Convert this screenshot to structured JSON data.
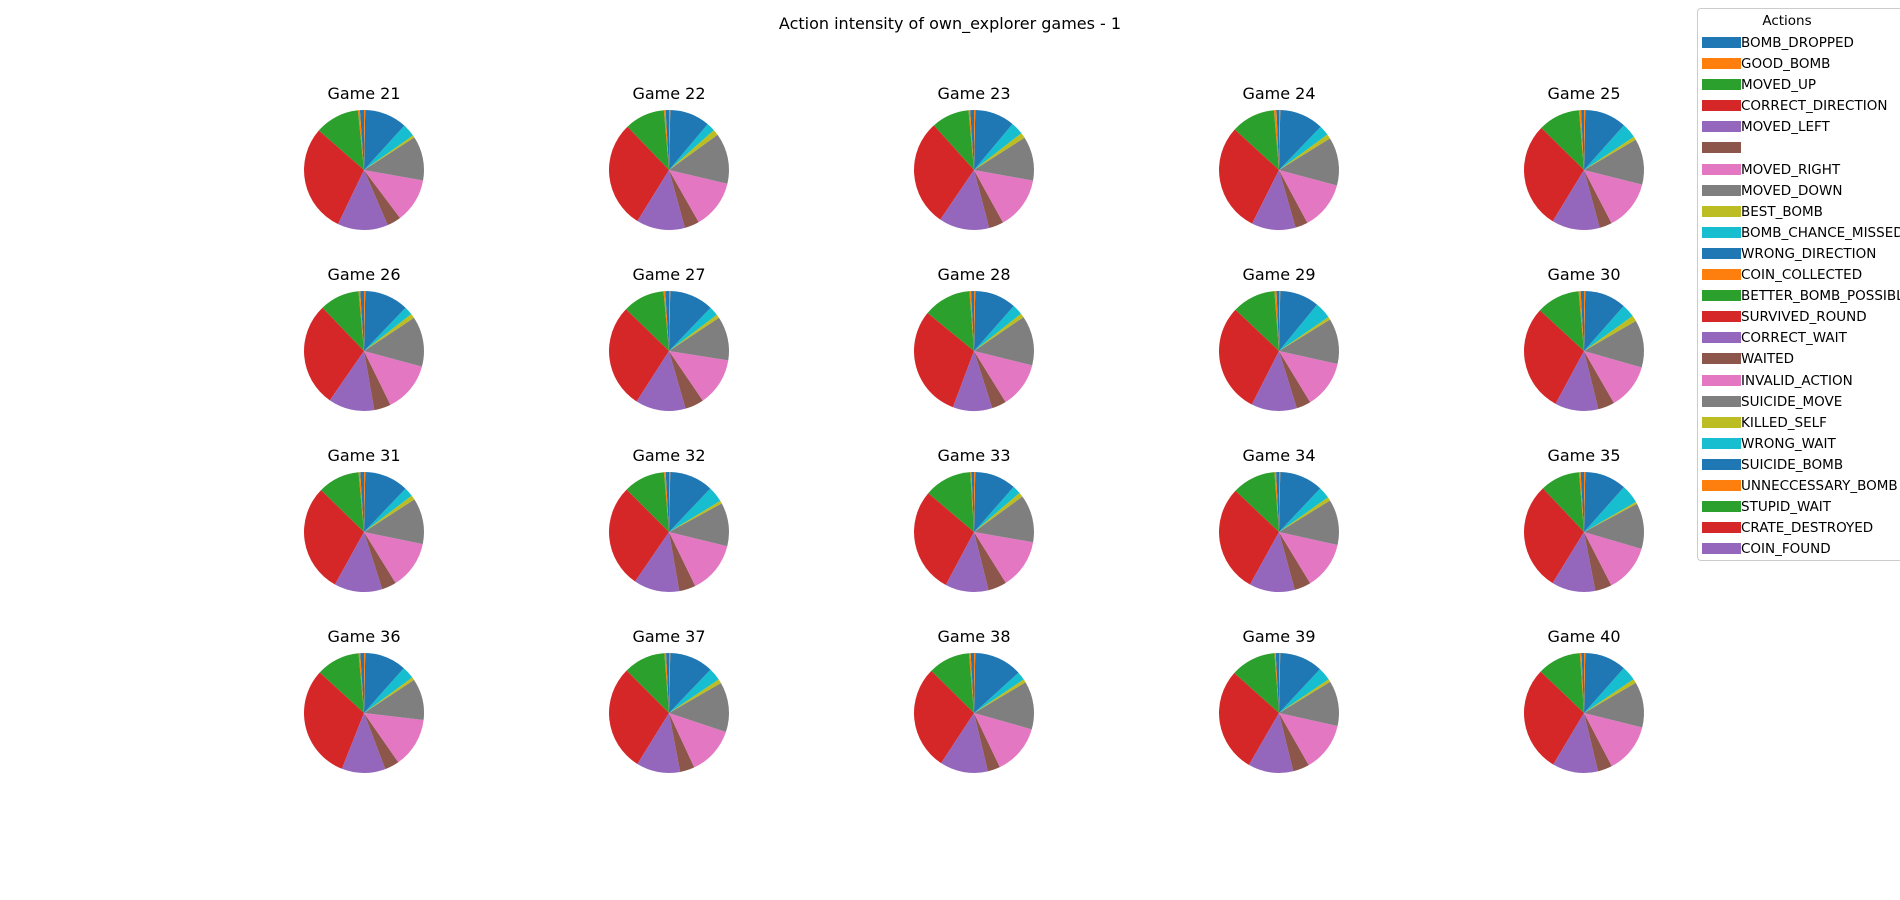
{
  "figure": {
    "title": "Action intensity of own_explorer games - 1"
  },
  "legend": {
    "title": "Actions"
  },
  "chart_data": {
    "type": "pie",
    "title": "Action intensity of own_explorer games - 1",
    "legend_placement": "right",
    "start_angle_deg": 90,
    "direction": "counterclockwise",
    "labels": [
      "BOMB_DROPPED",
      "GOOD_BOMB",
      "MOVED_UP",
      "CORRECT_DIRECTION",
      "MOVED_LEFT",
      "",
      "MOVED_RIGHT",
      "MOVED_DOWN",
      "BEST_BOMB",
      "BOMB_CHANCE_MISSED",
      "WRONG_DIRECTION",
      "COIN_COLLECTED",
      "BETTER_BOMB_POSSIBLE",
      "SURVIVED_ROUND",
      "CORRECT_WAIT",
      "WAITED",
      "INVALID_ACTION",
      "SUICIDE_MOVE",
      "KILLED_SELF",
      "WRONG_WAIT",
      "SUICIDE_BOMB",
      "UNNECCESSARY_BOMB",
      "STUPID_WAIT",
      "CRATE_DESTROYED",
      "COIN_FOUND"
    ],
    "colors": [
      "#1f77b4",
      "#ff7f0e",
      "#2ca02c",
      "#d62728",
      "#9467bd",
      "#8c564b",
      "#e377c2",
      "#7f7f7f",
      "#bcbd22",
      "#17becf",
      "#1f77b4",
      "#ff7f0e",
      "#2ca02c",
      "#d62728",
      "#9467bd",
      "#8c564b",
      "#e377c2",
      "#7f7f7f",
      "#bcbd22",
      "#17becf",
      "#1f77b4",
      "#ff7f0e",
      "#2ca02c",
      "#d62728",
      "#9467bd"
    ],
    "pies": [
      {
        "title": "Game 21",
        "values": [
          1.0,
          0.5,
          11.0,
          27.0,
          12.5,
          3.5,
          11.0,
          11.0,
          0.6,
          3.2,
          10.5,
          0.3,
          0,
          0,
          0,
          0,
          0,
          0,
          0,
          0,
          0,
          0,
          0,
          0,
          0
        ]
      },
      {
        "title": "Game 22",
        "values": [
          0.8,
          0.4,
          9.5,
          25.5,
          11.5,
          3.5,
          11.5,
          12.0,
          1.4,
          2.0,
          9.5,
          0.3,
          0,
          0,
          0,
          0,
          0,
          0,
          0,
          0,
          0,
          0,
          0,
          0,
          0
        ]
      },
      {
        "title": "Game 23",
        "values": [
          0.9,
          0.4,
          9.0,
          25.5,
          12.0,
          3.5,
          12.5,
          10.5,
          1.3,
          3.0,
          9.5,
          0.3,
          0,
          0,
          0,
          0,
          0,
          0,
          0,
          0,
          0,
          0,
          0,
          0,
          0
        ]
      },
      {
        "title": "Game 24",
        "values": [
          0.6,
          0.6,
          10.5,
          26.0,
          10.5,
          3.0,
          11.5,
          11.5,
          1.1,
          2.4,
          10.5,
          0.3,
          0,
          0,
          0,
          0,
          0,
          0,
          0,
          0,
          0,
          0,
          0,
          0,
          0
        ]
      },
      {
        "title": "Game 25",
        "values": [
          0.7,
          0.5,
          10.0,
          25.5,
          11.5,
          3.0,
          12.0,
          11.0,
          0.8,
          3.6,
          10.0,
          0.3,
          0,
          0,
          0,
          0,
          0,
          0,
          0,
          0,
          0,
          0,
          0,
          0,
          0
        ]
      },
      {
        "title": "Game 26",
        "values": [
          0.9,
          0.4,
          9.5,
          25.0,
          11.0,
          4.0,
          12.0,
          12.0,
          1.1,
          2.0,
          10.5,
          0.3,
          0,
          0,
          0,
          0,
          0,
          0,
          0,
          0,
          0,
          0,
          0,
          0,
          0
        ]
      },
      {
        "title": "Game 27",
        "values": [
          0.9,
          0.4,
          10.0,
          25.0,
          12.0,
          4.5,
          11.5,
          10.5,
          0.9,
          2.2,
          10.5,
          0.3,
          0,
          0,
          0,
          0,
          0,
          0,
          0,
          0,
          0,
          0,
          0,
          0,
          0
        ]
      },
      {
        "title": "Game 28",
        "values": [
          0.7,
          0.4,
          11.5,
          27.0,
          9.5,
          3.5,
          11.0,
          12.0,
          1.0,
          2.5,
          10.0,
          0.3,
          0,
          0,
          0,
          0,
          0,
          0,
          0,
          0,
          0,
          0,
          0,
          0,
          0
        ]
      },
      {
        "title": "Game 29",
        "values": [
          0.6,
          0.5,
          10.5,
          26.5,
          11.0,
          3.5,
          11.5,
          11.0,
          0.7,
          4.0,
          9.5,
          0.3,
          0,
          0,
          0,
          0,
          0,
          0,
          0,
          0,
          0,
          0,
          0,
          0,
          0
        ]
      },
      {
        "title": "Game 30",
        "values": [
          0.8,
          0.5,
          10.5,
          26.0,
          10.5,
          4.0,
          11.0,
          11.5,
          1.4,
          3.2,
          10.0,
          0.3,
          0,
          0,
          0,
          0,
          0,
          0,
          0,
          0,
          0,
          0,
          0,
          0,
          0
        ]
      },
      {
        "title": "Game 31",
        "values": [
          0.9,
          0.4,
          10.0,
          26.0,
          11.5,
          3.5,
          11.5,
          11.0,
          1.1,
          2.2,
          10.5,
          0.3,
          0,
          0,
          0,
          0,
          0,
          0,
          0,
          0,
          0,
          0,
          0,
          0,
          0
        ]
      },
      {
        "title": "Game 32",
        "values": [
          0.8,
          0.4,
          10.0,
          25.0,
          11.0,
          4.0,
          12.5,
          10.5,
          0.7,
          3.8,
          10.5,
          0.3,
          0,
          0,
          0,
          0,
          0,
          0,
          0,
          0,
          0,
          0,
          0,
          0,
          0
        ]
      },
      {
        "title": "Game 33",
        "values": [
          0.6,
          0.3,
          11.5,
          25.5,
          10.5,
          4.5,
          12.0,
          11.5,
          1.1,
          2.0,
          10.0,
          0.3,
          0,
          0,
          0,
          0,
          0,
          0,
          0,
          0,
          0,
          0,
          0,
          0,
          0
        ]
      },
      {
        "title": "Game 34",
        "values": [
          0.7,
          0.4,
          10.5,
          26.0,
          11.0,
          4.0,
          11.5,
          11.0,
          0.9,
          2.8,
          10.5,
          0.3,
          0,
          0,
          0,
          0,
          0,
          0,
          0,
          0,
          0,
          0,
          0,
          0,
          0
        ]
      },
      {
        "title": "Game 35",
        "values": [
          0.8,
          0.4,
          9.5,
          26.0,
          10.5,
          4.0,
          11.5,
          11.0,
          0.5,
          4.5,
          10.0,
          0.3,
          0,
          0,
          0,
          0,
          0,
          0,
          0,
          0,
          0,
          0,
          0,
          0,
          0
        ]
      },
      {
        "title": "Game 36",
        "values": [
          0.9,
          0.4,
          10.5,
          27.5,
          10.5,
          3.5,
          12.0,
          10.0,
          0.7,
          3.0,
          10.0,
          0.3,
          0,
          0,
          0,
          0,
          0,
          0,
          0,
          0,
          0,
          0,
          0,
          0,
          0
        ]
      },
      {
        "title": "Game 37",
        "values": [
          0.7,
          0.4,
          10.0,
          25.5,
          10.5,
          3.5,
          11.5,
          12.0,
          1.0,
          3.0,
          10.5,
          0.3,
          0,
          0,
          0,
          0,
          0,
          0,
          0,
          0,
          0,
          0,
          0,
          0,
          0
        ]
      },
      {
        "title": "Game 38",
        "values": [
          0.8,
          0.4,
          10.0,
          25.0,
          11.5,
          3.0,
          12.0,
          11.5,
          0.8,
          2.0,
          11.5,
          0.3,
          0,
          0,
          0,
          0,
          0,
          0,
          0,
          0,
          0,
          0,
          0,
          0,
          0
        ]
      },
      {
        "title": "Game 39",
        "values": [
          0.8,
          0.3,
          11.0,
          25.5,
          11.0,
          4.0,
          12.0,
          11.0,
          0.7,
          3.2,
          10.5,
          0.3,
          0,
          0,
          0,
          0,
          0,
          0,
          0,
          0,
          0,
          0,
          0,
          0,
          0
        ]
      },
      {
        "title": "Game 40",
        "values": [
          0.6,
          0.4,
          10.5,
          25.5,
          11.0,
          3.5,
          12.0,
          11.0,
          1.0,
          3.5,
          10.0,
          0.3,
          0,
          0,
          0,
          0,
          0,
          0,
          0,
          0,
          0,
          0,
          0,
          0,
          0
        ]
      }
    ]
  }
}
